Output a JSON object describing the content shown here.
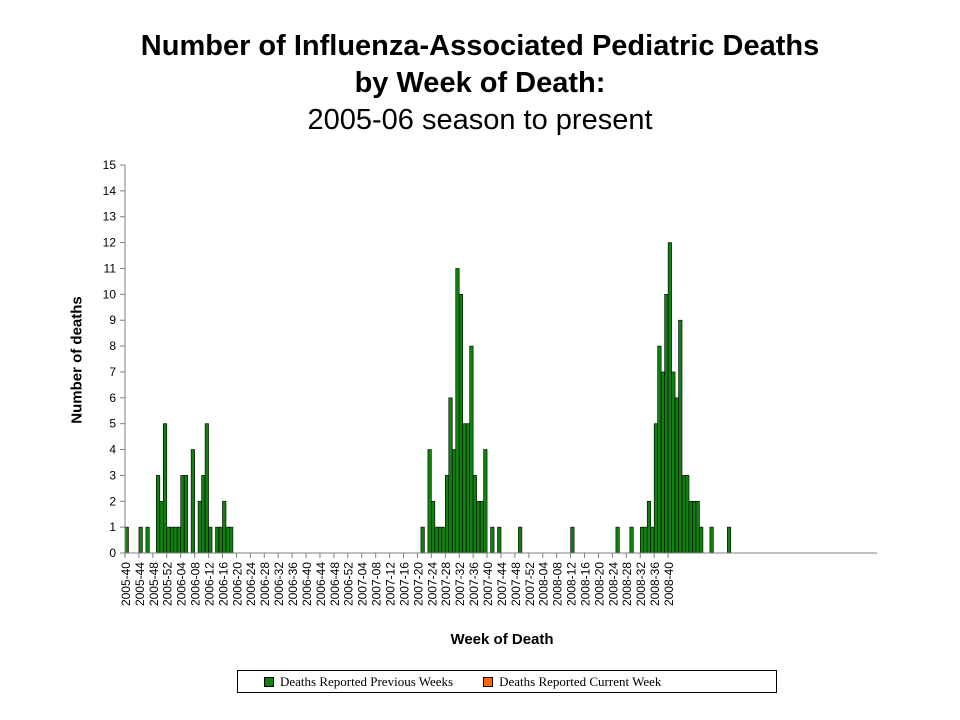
{
  "chart_data": {
    "type": "bar",
    "title": "Number of Influenza-Associated Pediatric Deaths",
    "title_line2": "by Week of Death:",
    "subtitle": "2005-06 season to present",
    "xlabel": "Week of Death",
    "ylabel": "Number of deaths",
    "ylim": [
      0,
      15
    ],
    "yticks": [
      0,
      1,
      2,
      3,
      4,
      5,
      6,
      7,
      8,
      9,
      10,
      11,
      12,
      13,
      14,
      15
    ],
    "xtick_labels": [
      "2005-40",
      "2005-44",
      "2005-48",
      "2005-52",
      "2006-04",
      "2006-08",
      "2006-12",
      "2006-16",
      "2006-20",
      "2006-24",
      "2006-28",
      "2006-32",
      "2006-36",
      "2006-40",
      "2006-44",
      "2006-48",
      "2006-52",
      "2007-04",
      "2007-08",
      "2007-12",
      "2007-16",
      "2007-20",
      "2007-24",
      "2007-28",
      "2007-32",
      "2007-36",
      "2007-40",
      "2007-44",
      "2007-48",
      "2007-52",
      "2008-04",
      "2008-08",
      "2008-12",
      "2008-16",
      "2008-20",
      "2008-24",
      "2008-28",
      "2008-32",
      "2008-36",
      "2008-40"
    ],
    "tick_every": 4,
    "legend_position": "bottom",
    "series": [
      {
        "name": "Deaths Reported Previous Weeks",
        "color": "#118011",
        "values": [
          1,
          0,
          0,
          0,
          1,
          0,
          1,
          0,
          0,
          3,
          2,
          5,
          1,
          1,
          1,
          1,
          3,
          3,
          0,
          4,
          0,
          2,
          3,
          5,
          1,
          0,
          1,
          1,
          2,
          1,
          1,
          0,
          0,
          0,
          0,
          0,
          0,
          0,
          0,
          0,
          0,
          0,
          0,
          0,
          0,
          0,
          0,
          0,
          0,
          0,
          0,
          0,
          0,
          0,
          0,
          0,
          0,
          0,
          0,
          0,
          0,
          0,
          0,
          0,
          0,
          0,
          0,
          0,
          0,
          0,
          0,
          0,
          0,
          0,
          0,
          0,
          0,
          0,
          0,
          0,
          0,
          0,
          0,
          0,
          0,
          1,
          0,
          4,
          2,
          1,
          1,
          1,
          3,
          6,
          4,
          11,
          10,
          5,
          5,
          8,
          3,
          2,
          2,
          4,
          0,
          1,
          0,
          1,
          0,
          0,
          0,
          0,
          0,
          1,
          0,
          0,
          0,
          0,
          0,
          0,
          0,
          0,
          0,
          0,
          0,
          0,
          0,
          0,
          1,
          0,
          0,
          0,
          0,
          0,
          0,
          0,
          0,
          0,
          0,
          0,
          0,
          1,
          0,
          0,
          0,
          1,
          0,
          0,
          1,
          1,
          2,
          1,
          5,
          8,
          7,
          10,
          12,
          7,
          6,
          9,
          3,
          3,
          2,
          2,
          2,
          1,
          0,
          0,
          1,
          0,
          0,
          0,
          0,
          1,
          0,
          0,
          0,
          0,
          0,
          0,
          0,
          0,
          0,
          0,
          0,
          0,
          0,
          0,
          0,
          0,
          0,
          0,
          0,
          0,
          0,
          0,
          0,
          0,
          0,
          0,
          0,
          0,
          0,
          0,
          0,
          0,
          0,
          0,
          0,
          0,
          0,
          0,
          0,
          0,
          0,
          0
        ]
      },
      {
        "name": "Deaths Reported Current Week",
        "color": "#FF6600",
        "values": []
      }
    ]
  },
  "legend": {
    "previous_label": "Deaths Reported Previous Weeks",
    "current_label": "Deaths Reported Current Week"
  }
}
